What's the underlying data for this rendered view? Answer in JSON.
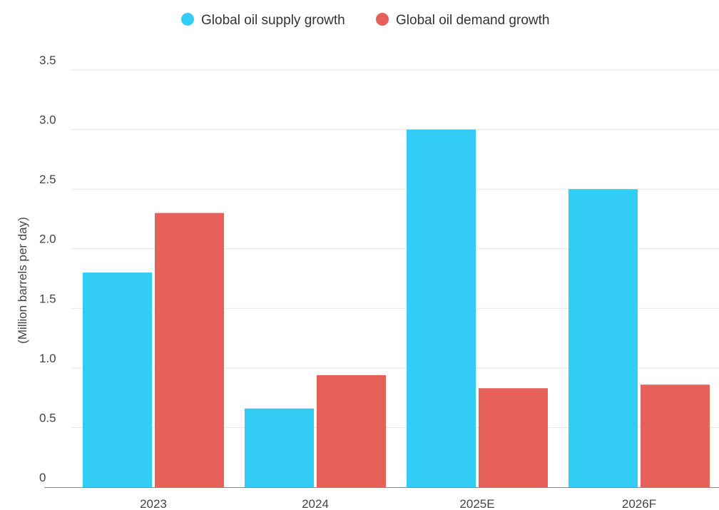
{
  "chart_data": {
    "type": "bar",
    "title": "",
    "xlabel": "",
    "ylabel": "(Million barrels per day)",
    "categories": [
      "2023",
      "2024",
      "2025E",
      "2026F"
    ],
    "series": [
      {
        "name": "Global oil supply growth",
        "values": [
          1.8,
          0.66,
          3.0,
          2.5
        ],
        "color": "#33ccf5"
      },
      {
        "name": "Global oil demand growth",
        "values": [
          2.3,
          0.94,
          0.83,
          0.86
        ],
        "color": "#e8605a"
      }
    ],
    "ylim": [
      0,
      3.5
    ],
    "yticks": [
      "0",
      "0.5",
      "1.0",
      "1.5",
      "2.0",
      "2.5",
      "3.0",
      "3.5"
    ],
    "grid": true,
    "legend_position": "top-center"
  }
}
